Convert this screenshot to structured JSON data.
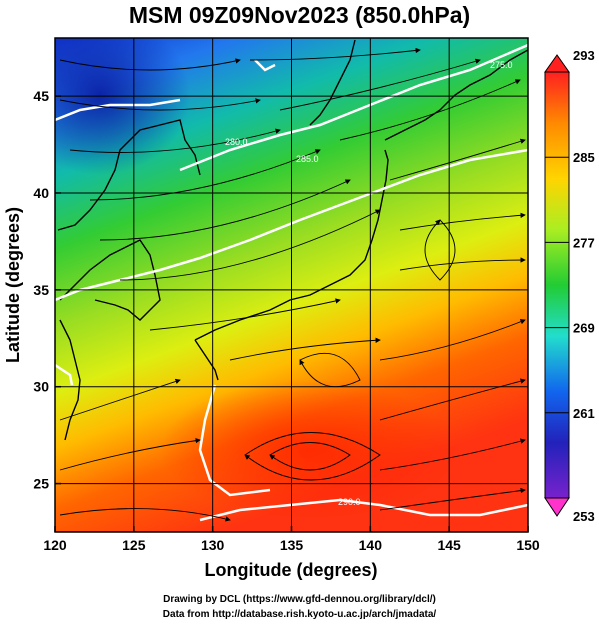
{
  "title": "MSM 09Z09Nov2023 (850.0hPa)",
  "x_axis": {
    "label": "Longitude (degrees)",
    "range": [
      120,
      150
    ],
    "ticks": [
      "120",
      "125",
      "130",
      "135",
      "140",
      "145",
      "150"
    ]
  },
  "y_axis": {
    "label": "Latitude  (degrees)",
    "range": [
      22.5,
      48
    ],
    "ticks": [
      "25",
      "30",
      "35",
      "40",
      "45"
    ]
  },
  "colorbar": {
    "min": 253,
    "max": 293,
    "tick_labels": [
      "293",
      "285",
      "277",
      "269",
      "261",
      "253"
    ],
    "colors": [
      "#ff2020",
      "#ff8a00",
      "#ffd400",
      "#aaee22",
      "#22cc33",
      "#22ddcc",
      "#1166ee",
      "#2222bb",
      "#7722cc",
      "#ff33cc"
    ]
  },
  "contour_labels": [
    "290.0",
    "285.0",
    "280.0",
    "275.0"
  ],
  "credits": {
    "line1": "Drawing by DCL (https://www.gfd-dennou.org/library/dcl/)",
    "line2": "Data from http://database.rish.kyoto-u.ac.jp/arch/jmadata/"
  }
}
